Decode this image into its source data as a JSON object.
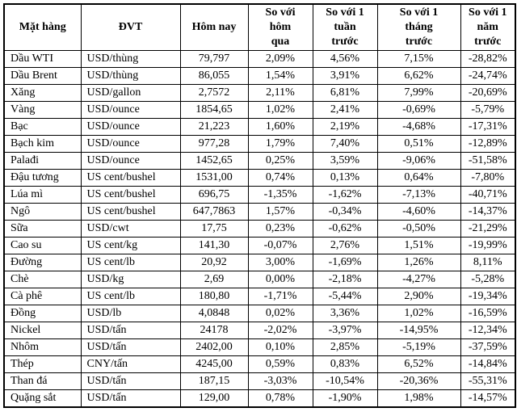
{
  "colors": {
    "background": "#ffffff",
    "border": "#000000",
    "text": "#000000"
  },
  "table": {
    "headers": [
      "Mặt hàng",
      "ĐVT",
      "Hôm nay",
      "So với\nhôm\nqua",
      "So với 1\ntuần\ntrước",
      "So với 1\ntháng\ntrước",
      "So với 1\nnăm\ntrước"
    ],
    "rows": [
      [
        "Dầu WTI",
        "USD/thùng",
        "79,797",
        "2,09%",
        "4,56%",
        "7,15%",
        "-28,82%"
      ],
      [
        "Dầu Brent",
        "USD/thùng",
        "86,055",
        "1,54%",
        "3,91%",
        "6,62%",
        "-24,74%"
      ],
      [
        "Xăng",
        "USD/gallon",
        "2,7572",
        "2,11%",
        "6,81%",
        "7,99%",
        "-20,69%"
      ],
      [
        "Vàng",
        "USD/ounce",
        "1854,65",
        "1,02%",
        "2,41%",
        "-0,69%",
        "-5,79%"
      ],
      [
        "Bạc",
        "USD/ounce",
        "21,223",
        "1,60%",
        "2,19%",
        "-4,68%",
        "-17,31%"
      ],
      [
        "Bạch kim",
        "USD/ounce",
        "977,28",
        "1,79%",
        "7,40%",
        "0,51%",
        "-12,89%"
      ],
      [
        "Palađi",
        "USD/ounce",
        "1452,65",
        "0,25%",
        "3,59%",
        "-9,06%",
        "-51,58%"
      ],
      [
        "Đậu tương",
        "US cent/bushel",
        "1531,00",
        "0,74%",
        "0,13%",
        "0,64%",
        "-7,80%"
      ],
      [
        "Lúa mì",
        "US cent/bushel",
        "696,75",
        "-1,35%",
        "-1,62%",
        "-7,13%",
        "-40,71%"
      ],
      [
        "Ngô",
        "US cent/bushel",
        "647,7863",
        "1,57%",
        "-0,34%",
        "-4,60%",
        "-14,37%"
      ],
      [
        "Sữa",
        "USD/cwt",
        "17,75",
        "0,23%",
        "-0,62%",
        "-0,50%",
        "-21,29%"
      ],
      [
        "Cao su",
        "US cent/kg",
        "141,30",
        "-0,07%",
        "2,76%",
        "1,51%",
        "-19,99%"
      ],
      [
        "Đường",
        "US cent/lb",
        "20,92",
        "3,00%",
        "-1,69%",
        "1,26%",
        "8,11%"
      ],
      [
        "Chè",
        "USD/kg",
        "2,69",
        "0,00%",
        "-2,18%",
        "-4,27%",
        "-5,28%"
      ],
      [
        "Cà phê",
        "US cent/lb",
        "180,80",
        "-1,71%",
        "-5,44%",
        "2,90%",
        "-19,34%"
      ],
      [
        "Đồng",
        "USD/lb",
        "4,0848",
        "0,02%",
        "3,36%",
        "1,02%",
        "-16,59%"
      ],
      [
        "Nickel",
        "USD/tấn",
        "24178",
        "-2,02%",
        "-3,97%",
        "-14,95%",
        "-12,34%"
      ],
      [
        "Nhôm",
        "USD/tấn",
        "2402,00",
        "0,10%",
        "2,85%",
        "-5,19%",
        "-37,59%"
      ],
      [
        "Thép",
        "CNY/tấn",
        "4245,00",
        "0,59%",
        "0,83%",
        "6,52%",
        "-14,84%"
      ],
      [
        "Than đá",
        "USD/tấn",
        "187,15",
        "-3,03%",
        "-10,54%",
        "-20,36%",
        "-55,31%"
      ],
      [
        "Quặng sắt",
        "USD/tấn",
        "129,00",
        "0,78%",
        "-1,90%",
        "1,98%",
        "-14,57%"
      ]
    ]
  }
}
